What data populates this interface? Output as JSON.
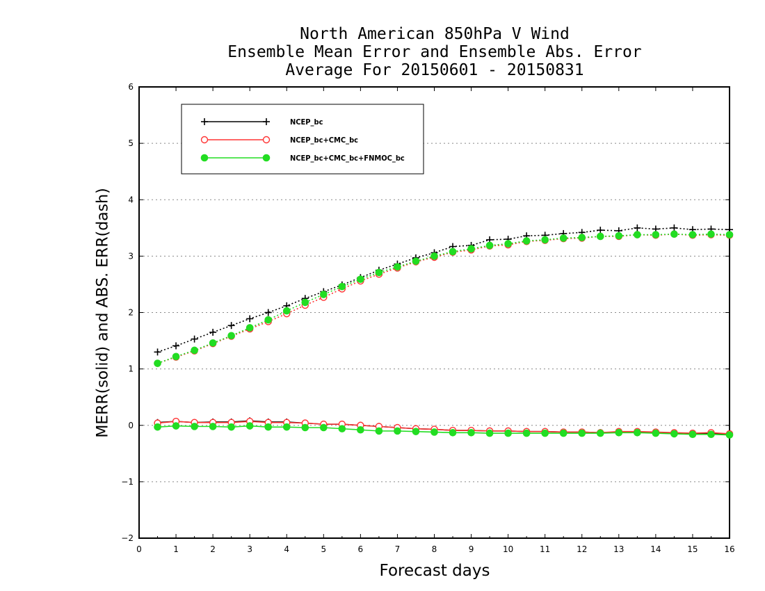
{
  "titles": [
    "North American 850hPa V Wind",
    "Ensemble Mean Error and Ensemble Abs. Error",
    "Average For 20150601 - 20150831"
  ],
  "chart_data": {
    "type": "line",
    "title": "North American 850hPa V Wind / Ensemble Mean Error and Ensemble Abs. Error / Average For 20150601 - 20150831",
    "xlabel": "Forecast days",
    "ylabel": "MERR(solid) and ABS. ERR(dash)",
    "xlim": [
      0,
      16
    ],
    "ylim": [
      -2,
      6
    ],
    "xticks": [
      0,
      1,
      2,
      3,
      4,
      5,
      6,
      7,
      8,
      9,
      10,
      11,
      12,
      13,
      14,
      15,
      16
    ],
    "yticks": [
      -2,
      -1,
      0,
      1,
      2,
      3,
      4,
      5,
      6
    ],
    "grid": "horizontal dotted",
    "legend_position": "top-left",
    "x": [
      0.5,
      1.0,
      1.5,
      2.0,
      2.5,
      3.0,
      3.5,
      4.0,
      4.5,
      5.0,
      5.5,
      6.0,
      6.5,
      7.0,
      7.5,
      8.0,
      8.5,
      9.0,
      9.5,
      10.0,
      10.5,
      11.0,
      11.5,
      12.0,
      12.5,
      13.0,
      13.5,
      14.0,
      14.5,
      15.0,
      15.5,
      16.0
    ],
    "series": [
      {
        "name": "NCEP_bc",
        "color": "#000000",
        "marker": "plus",
        "merr": [
          0.05,
          0.07,
          0.05,
          0.06,
          0.06,
          0.08,
          0.06,
          0.06,
          0.04,
          0.02,
          0.02,
          0.0,
          -0.02,
          -0.04,
          -0.06,
          -0.07,
          -0.09,
          -0.09,
          -0.1,
          -0.1,
          -0.11,
          -0.11,
          -0.12,
          -0.12,
          -0.13,
          -0.12,
          -0.12,
          -0.13,
          -0.14,
          -0.15,
          -0.14,
          -0.16
        ],
        "abs_err": [
          1.3,
          1.41,
          1.53,
          1.65,
          1.77,
          1.89,
          2.0,
          2.12,
          2.25,
          2.37,
          2.49,
          2.62,
          2.75,
          2.86,
          2.97,
          3.06,
          3.17,
          3.19,
          3.29,
          3.3,
          3.36,
          3.37,
          3.4,
          3.42,
          3.46,
          3.45,
          3.5,
          3.48,
          3.5,
          3.47,
          3.48,
          3.47
        ]
      },
      {
        "name": "NCEP_bc+CMC_bc",
        "color": "#ff3333",
        "marker": "open-circle",
        "merr": [
          0.04,
          0.07,
          0.05,
          0.05,
          0.05,
          0.07,
          0.05,
          0.05,
          0.04,
          0.02,
          0.02,
          0.0,
          -0.02,
          -0.04,
          -0.06,
          -0.07,
          -0.09,
          -0.09,
          -0.1,
          -0.1,
          -0.11,
          -0.11,
          -0.12,
          -0.12,
          -0.13,
          -0.11,
          -0.11,
          -0.12,
          -0.13,
          -0.14,
          -0.13,
          -0.15
        ],
        "abs_err": [
          1.1,
          1.21,
          1.32,
          1.45,
          1.58,
          1.71,
          1.84,
          1.98,
          2.13,
          2.27,
          2.42,
          2.56,
          2.68,
          2.79,
          2.9,
          2.98,
          3.07,
          3.11,
          3.18,
          3.2,
          3.26,
          3.28,
          3.31,
          3.32,
          3.35,
          3.35,
          3.38,
          3.37,
          3.39,
          3.37,
          3.38,
          3.37
        ]
      },
      {
        "name": "NCEP_bc+CMC_bc+FNMOC_bc",
        "color": "#22dd22",
        "marker": "filled-circle",
        "merr": [
          -0.03,
          -0.01,
          -0.02,
          -0.02,
          -0.03,
          -0.01,
          -0.03,
          -0.03,
          -0.04,
          -0.04,
          -0.06,
          -0.08,
          -0.1,
          -0.1,
          -0.11,
          -0.12,
          -0.13,
          -0.13,
          -0.14,
          -0.14,
          -0.14,
          -0.14,
          -0.14,
          -0.14,
          -0.14,
          -0.13,
          -0.13,
          -0.14,
          -0.15,
          -0.16,
          -0.16,
          -0.17
        ],
        "abs_err": [
          1.1,
          1.22,
          1.33,
          1.46,
          1.59,
          1.73,
          1.87,
          2.03,
          2.18,
          2.32,
          2.46,
          2.59,
          2.71,
          2.81,
          2.91,
          3.0,
          3.08,
          3.13,
          3.19,
          3.22,
          3.27,
          3.29,
          3.32,
          3.33,
          3.35,
          3.36,
          3.38,
          3.38,
          3.39,
          3.38,
          3.39,
          3.38
        ]
      }
    ]
  }
}
